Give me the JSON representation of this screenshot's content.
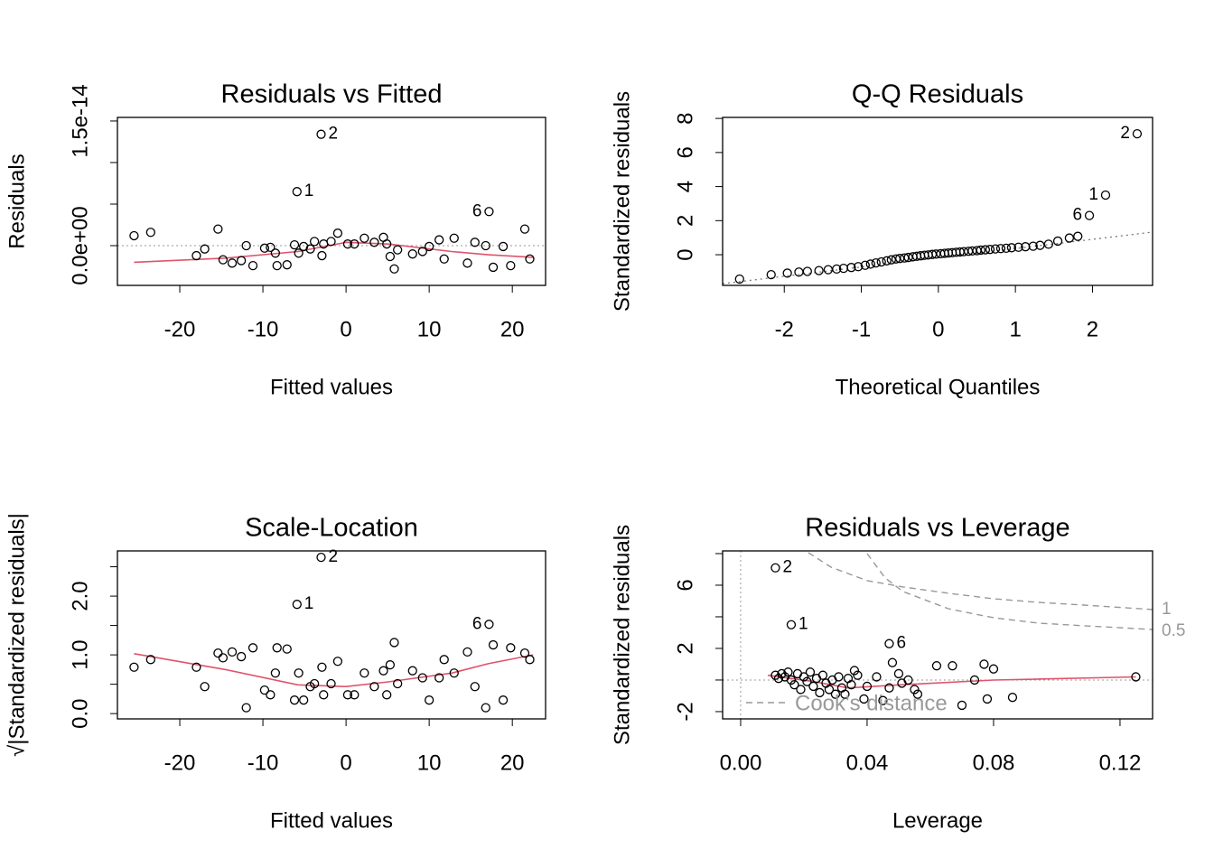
{
  "chart_data": [
    {
      "type": "scatter",
      "title": "Residuals vs Fitted",
      "xlabel": "Fitted values",
      "ylabel": "Residuals",
      "xlim": [
        -27.5,
        24.0
      ],
      "ylim": [
        -4.78e-15,
        1.543e-14
      ],
      "xticks": [
        -20,
        -10,
        0,
        10,
        20
      ],
      "yticks": [
        {
          "value": 0,
          "label": "0.0e+00"
        },
        {
          "value": 5e-15,
          "label": null
        },
        {
          "value": 1e-14,
          "label": null
        },
        {
          "value": 1.5e-14,
          "label": "1.5e-14"
        }
      ],
      "point_color": "#000000",
      "x": [
        -25.5,
        -23.5,
        -18.0,
        -17.0,
        -15.4,
        -14.8,
        -13.7,
        -12.6,
        -12.0,
        -11.2,
        -9.8,
        -9.1,
        -8.5,
        -8.3,
        -7.1,
        -6.2,
        -5.7,
        -5.1,
        -4.3,
        -3.8,
        -2.9,
        -2.7,
        -1.8,
        -1.0,
        0.2,
        1.0,
        2.2,
        3.4,
        4.5,
        4.9,
        5.3,
        5.8,
        6.2,
        8.0,
        9.2,
        10.0,
        11.2,
        11.8,
        13.0,
        14.6,
        15.5,
        16.8,
        17.7,
        18.9,
        19.8,
        21.5,
        22.1
      ],
      "y": [
        1.2e-15,
        1.6e-15,
        -1.2e-15,
        -4e-16,
        2e-15,
        -1.7e-15,
        -2.1e-15,
        -1.8e-15,
        0,
        -2.4e-15,
        -3e-16,
        -2e-16,
        -9e-16,
        -2.4e-15,
        -2.3e-15,
        1e-16,
        -9e-16,
        -1e-16,
        -4e-16,
        5e-16,
        -1.2e-15,
        2e-16,
        5e-16,
        1.5e-15,
        2e-16,
        2e-16,
        9e-16,
        4e-16,
        1e-15,
        2e-16,
        -1.3e-15,
        -2.8e-15,
        -5e-16,
        -1e-15,
        -7e-16,
        -1e-16,
        7e-16,
        -1.6e-15,
        9e-16,
        -2.1e-15,
        4e-16,
        0,
        -2.6e-15,
        -1e-16,
        -2.4e-15,
        2e-15,
        -1.6e-15
      ],
      "annotations": [
        {
          "label": "2",
          "x": -3.0,
          "y": 1.34e-14
        },
        {
          "label": "1",
          "x": -5.9,
          "y": 6.5e-15
        },
        {
          "label": "6",
          "x": 17.2,
          "y": 4.1e-15
        }
      ],
      "smooth": {
        "color": "#df536b",
        "x": [
          -25.5,
          -14.5,
          -5.8,
          0,
          5.1,
          12.7,
          17.1,
          22.5
        ],
        "y": [
          -2e-15,
          -1.5e-15,
          -7e-16,
          4e-16,
          2e-16,
          -7e-16,
          -1.1e-15,
          -1.4e-15
        ]
      },
      "hline": 0
    },
    {
      "type": "scatter",
      "title": "Q-Q Residuals",
      "xlabel": "Theoretical Quantiles",
      "ylabel": "Standardized residuals",
      "xlim": [
        -2.8,
        2.78
      ],
      "ylim": [
        -1.8,
        8.06
      ],
      "xticks": [
        -2,
        -1,
        0,
        1,
        2
      ],
      "yticks": [
        0,
        2,
        4,
        6,
        8
      ],
      "point_color": "#000000",
      "x": [
        -2.58,
        -2.17,
        -1.96,
        -1.81,
        -1.7,
        -1.55,
        -1.43,
        -1.32,
        -1.23,
        -1.13,
        -1.04,
        -0.95,
        -0.88,
        -0.81,
        -0.74,
        -0.67,
        -0.61,
        -0.55,
        -0.5,
        -0.44,
        -0.39,
        -0.33,
        -0.28,
        -0.23,
        -0.18,
        -0.13,
        -0.08,
        -0.03,
        0.03,
        0.08,
        0.13,
        0.18,
        0.23,
        0.28,
        0.33,
        0.39,
        0.44,
        0.5,
        0.55,
        0.61,
        0.67,
        0.74,
        0.81,
        0.88,
        0.95,
        1.04,
        1.13,
        1.23,
        1.32,
        1.43,
        1.55,
        1.7,
        1.81
      ],
      "y": [
        -1.43,
        -1.17,
        -1.08,
        -1.02,
        -0.98,
        -0.93,
        -0.88,
        -0.84,
        -0.8,
        -0.75,
        -0.7,
        -0.62,
        -0.55,
        -0.48,
        -0.42,
        -0.36,
        -0.3,
        -0.25,
        -0.22,
        -0.19,
        -0.16,
        -0.12,
        -0.09,
        -0.06,
        -0.03,
        -0.01,
        0.02,
        0.04,
        0.06,
        0.08,
        0.1,
        0.12,
        0.14,
        0.16,
        0.18,
        0.2,
        0.22,
        0.24,
        0.27,
        0.29,
        0.31,
        0.34,
        0.36,
        0.38,
        0.41,
        0.44,
        0.47,
        0.5,
        0.55,
        0.62,
        0.8,
        0.98,
        1.08
      ],
      "annotations": [
        {
          "label": "2",
          "x": 2.58,
          "y": 7.1
        },
        {
          "label": "1",
          "x": 2.17,
          "y": 3.5
        },
        {
          "label": "6",
          "x": 1.96,
          "y": 2.3
        }
      ],
      "reference_line": {
        "color": "#777777",
        "x": [
          -2.8,
          2.78
        ],
        "y": [
          -1.7,
          1.33
        ]
      }
    },
    {
      "type": "scatter",
      "title": "Scale-Location",
      "xlabel": "Fitted values",
      "ylabel": "√|Standardized residuals|",
      "xlim": [
        -27.5,
        24.0
      ],
      "ylim": [
        -0.09,
        2.77
      ],
      "xticks": [
        -20,
        -10,
        0,
        10,
        20
      ],
      "yticks": [
        {
          "value": 0,
          "label": "0.0"
        },
        {
          "value": 0.5,
          "label": null
        },
        {
          "value": 1,
          "label": "1.0"
        },
        {
          "value": 1.5,
          "label": null
        },
        {
          "value": 2,
          "label": "2.0"
        },
        {
          "value": 2.5,
          "label": null
        }
      ],
      "point_color": "#000000",
      "x": [
        -25.5,
        -23.5,
        -18.0,
        -17.0,
        -15.4,
        -14.8,
        -13.7,
        -12.6,
        -12.0,
        -11.2,
        -9.8,
        -9.1,
        -8.5,
        -8.3,
        -7.1,
        -6.2,
        -5.7,
        -5.1,
        -4.3,
        -3.8,
        -2.9,
        -2.7,
        -1.8,
        -1.0,
        0.2,
        1.0,
        2.2,
        3.4,
        4.5,
        4.9,
        5.3,
        5.8,
        6.2,
        8.0,
        9.2,
        10.0,
        11.2,
        11.8,
        13.0,
        14.6,
        15.5,
        16.8,
        17.7,
        18.9,
        19.8,
        21.5,
        22.1
      ],
      "y": [
        0.79,
        0.92,
        0.79,
        0.46,
        1.03,
        0.95,
        1.05,
        0.97,
        0.1,
        1.12,
        0.4,
        0.32,
        0.69,
        1.12,
        1.1,
        0.23,
        0.69,
        0.23,
        0.46,
        0.51,
        0.79,
        0.32,
        0.51,
        0.89,
        0.32,
        0.32,
        0.69,
        0.46,
        0.73,
        0.32,
        0.83,
        1.21,
        0.51,
        0.73,
        0.61,
        0.23,
        0.61,
        0.92,
        0.69,
        1.05,
        0.46,
        0.1,
        1.17,
        0.23,
        1.12,
        1.03,
        0.92
      ],
      "annotations": [
        {
          "label": "2",
          "x": -3.0,
          "y": 2.66
        },
        {
          "label": "1",
          "x": -5.9,
          "y": 1.86
        },
        {
          "label": "6",
          "x": 17.2,
          "y": 1.52
        }
      ],
      "smooth": {
        "color": "#df536b",
        "x": [
          -25.5,
          -14.5,
          -5.8,
          0,
          5.1,
          12.7,
          17.1,
          22.5
        ],
        "y": [
          1.02,
          0.75,
          0.49,
          0.46,
          0.54,
          0.69,
          0.85,
          1.0
        ]
      }
    },
    {
      "type": "scatter",
      "title": "Residuals vs Leverage",
      "xlabel": "Leverage",
      "ylabel": "Standardized residuals",
      "xlim": [
        -0.0057,
        0.1303
      ],
      "ylim": [
        -2.46,
        8.17
      ],
      "xticks": [
        {
          "value": 0,
          "label": "0.00"
        },
        {
          "value": 0.04,
          "label": "0.04"
        },
        {
          "value": 0.08,
          "label": "0.08"
        },
        {
          "value": 0.12,
          "label": "0.12"
        }
      ],
      "yticks": [
        -2,
        {
          "value": 0,
          "label": null
        },
        2,
        {
          "value": 4,
          "label": null
        },
        6,
        {
          "value": 8,
          "label": null
        }
      ],
      "point_color": "#000000",
      "x": [
        0.011,
        0.012,
        0.013,
        0.014,
        0.015,
        0.016,
        0.017,
        0.018,
        0.019,
        0.02,
        0.021,
        0.022,
        0.023,
        0.024,
        0.025,
        0.026,
        0.027,
        0.028,
        0.029,
        0.03,
        0.031,
        0.032,
        0.033,
        0.034,
        0.035,
        0.036,
        0.037,
        0.039,
        0.04,
        0.043,
        0.045,
        0.047,
        0.048,
        0.05,
        0.051,
        0.053,
        0.055,
        0.056,
        0.062,
        0.067,
        0.07,
        0.074,
        0.077,
        0.078,
        0.08,
        0.086,
        0.125
      ],
      "y": [
        0.3,
        0.1,
        0.4,
        0.2,
        0.5,
        0.0,
        -0.3,
        0.4,
        -0.6,
        0.2,
        -0.1,
        0.5,
        -0.4,
        0.1,
        -0.8,
        0.3,
        -0.2,
        -0.6,
        0.0,
        -0.9,
        0.2,
        -0.5,
        -0.9,
        0.1,
        -0.3,
        0.6,
        0.3,
        -1.2,
        -0.4,
        0.2,
        -1.3,
        -0.5,
        1.1,
        0.4,
        -0.2,
        0.0,
        -0.6,
        -0.9,
        0.9,
        0.9,
        -1.6,
        0.0,
        1.0,
        -1.2,
        0.7,
        -1.1,
        0.2
      ],
      "annotations": [
        {
          "label": "2",
          "x": 0.011,
          "y": 7.1
        },
        {
          "label": "1",
          "x": 0.016,
          "y": 3.5
        },
        {
          "label": "6",
          "x": 0.047,
          "y": 2.3
        }
      ],
      "smooth": {
        "color": "#df536b",
        "x": [
          0.0086,
          0.023,
          0.034,
          0.051,
          0.08,
          0.125
        ],
        "y": [
          0.3,
          -0.1,
          -0.5,
          -0.3,
          0.0,
          0.2
        ]
      },
      "hline": 0,
      "vline": 0,
      "cooks_contours": [
        {
          "level": 1,
          "x": [
            0.0214,
            0.0286,
            0.04,
            0.0514,
            0.0657,
            0.08,
            0.0943,
            0.1086,
            0.1303
          ],
          "y": [
            8.06,
            7.14,
            6.29,
            5.89,
            5.49,
            5.14,
            4.91,
            4.74,
            4.46
          ]
        },
        {
          "level": 0.5,
          "x": [
            0.04,
            0.0457,
            0.0514,
            0.0657,
            0.08,
            0.0943,
            0.1086,
            0.1303
          ],
          "y": [
            8.0,
            6.46,
            5.6,
            4.51,
            3.94,
            3.6,
            3.43,
            3.2
          ]
        }
      ],
      "legend": {
        "label": "Cook's distance",
        "color": "#999999"
      }
    }
  ]
}
